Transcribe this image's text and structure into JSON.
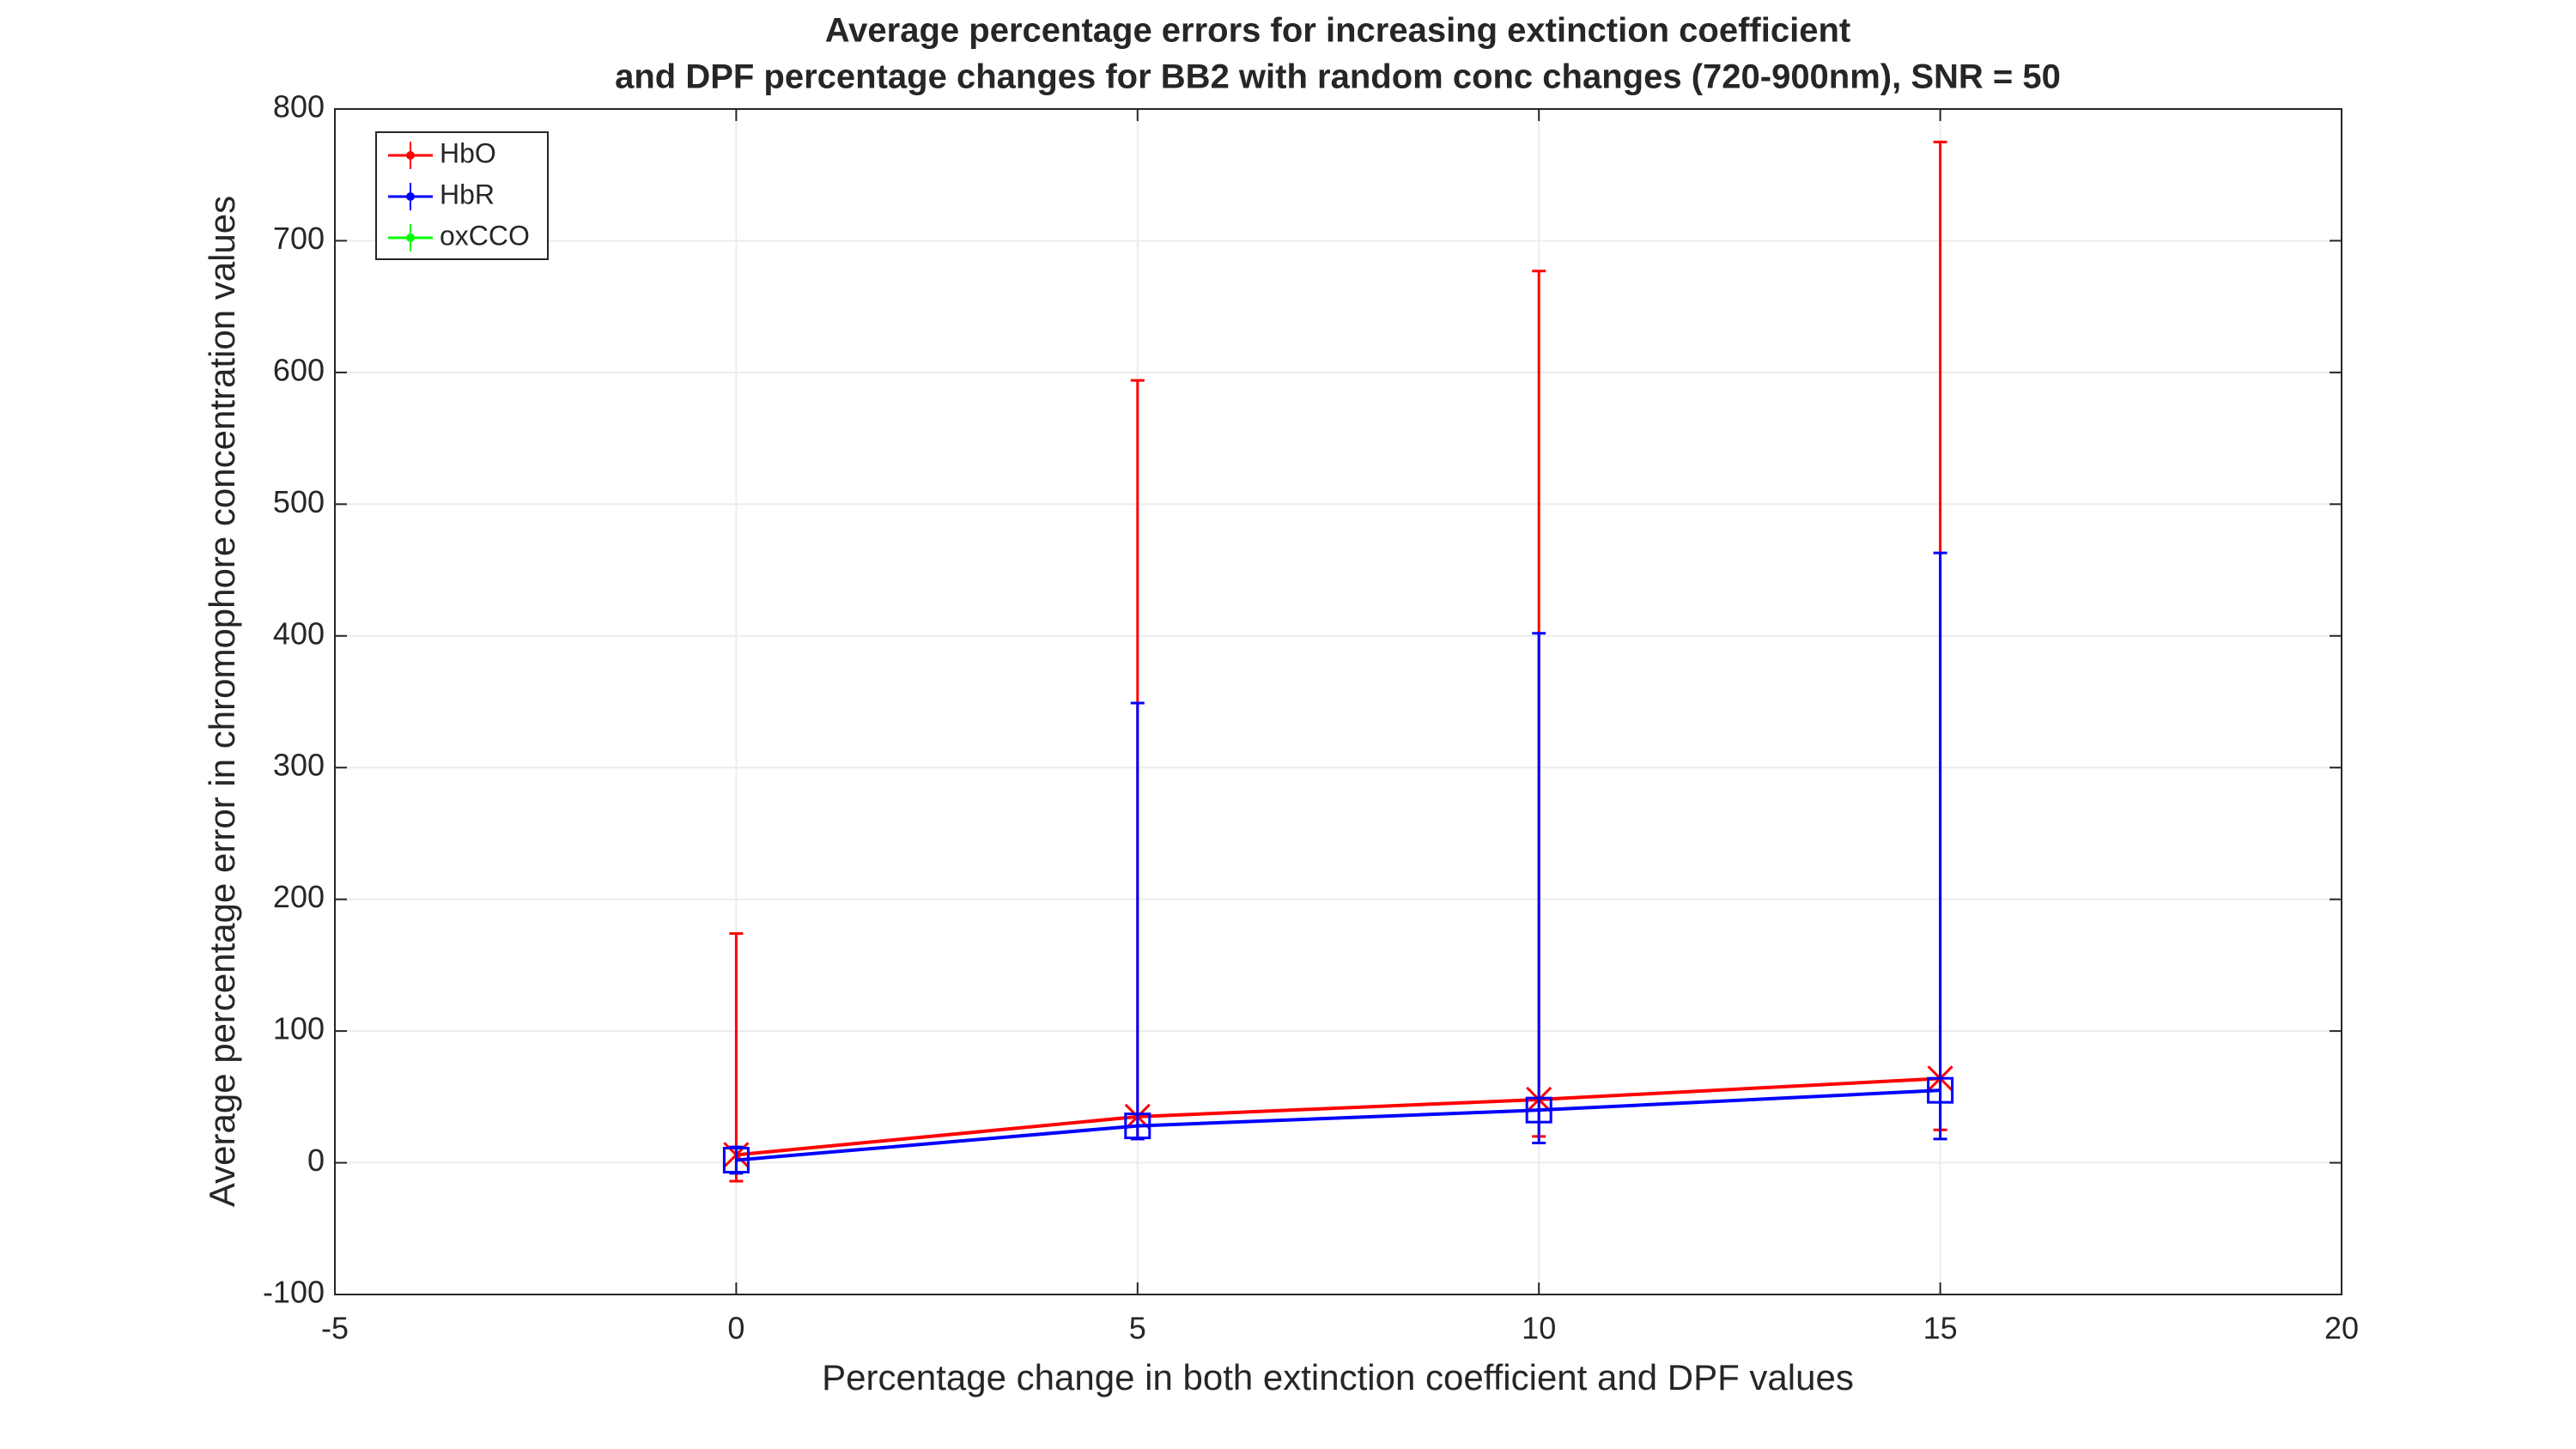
{
  "chart_data": {
    "type": "errorbar-line",
    "title": [
      "Average percentage errors for increasing extinction coefficient",
      "and DPF percentage changes for BB2 with random conc changes (720-900nm), SNR = 50"
    ],
    "xlabel": "Percentage change in both extinction coefficient and DPF values",
    "ylabel": "Average percentage error in chromophore concentration values",
    "x": [
      0,
      5,
      10,
      15
    ],
    "series": [
      {
        "name": "HbO",
        "color": "#ff0000",
        "marker": "x",
        "values": [
          6,
          35,
          48,
          64
        ],
        "errors_lower": [
          20,
          17,
          28,
          39
        ],
        "errors_upper": [
          168,
          559,
          629,
          711
        ]
      },
      {
        "name": "HbR",
        "color": "#0000ff",
        "marker": "square",
        "values": [
          2,
          28,
          40,
          55
        ],
        "errors_lower": [
          10,
          10,
          25,
          37
        ],
        "errors_upper": [
          10,
          321,
          362,
          408
        ]
      },
      {
        "name": "oxCCO",
        "color": "#00ff00",
        "marker": "circle",
        "values": [
          null,
          null,
          null,
          null
        ],
        "errors_lower": [
          null,
          null,
          null,
          null
        ],
        "errors_upper": [
          null,
          null,
          null,
          null
        ]
      }
    ],
    "xlim": [
      -5,
      20
    ],
    "xticks": [
      -5,
      0,
      5,
      10,
      15,
      20
    ],
    "ylim": [
      -100,
      800
    ],
    "yticks": [
      -100,
      0,
      100,
      200,
      300,
      400,
      500,
      600,
      700,
      800
    ],
    "grid": true,
    "legend": "upper left"
  }
}
